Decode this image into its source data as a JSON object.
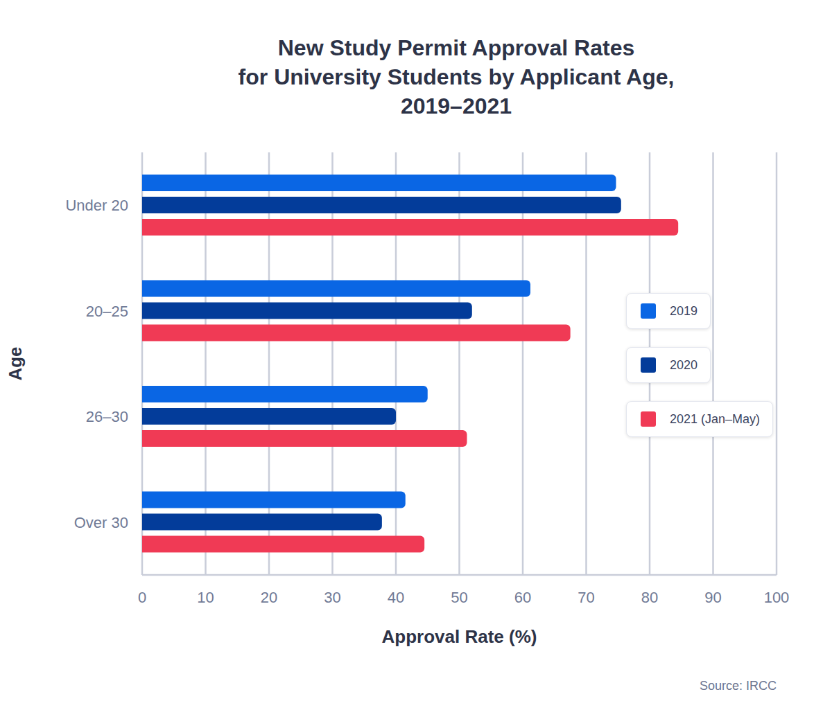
{
  "chart_data": {
    "type": "bar",
    "orientation": "horizontal",
    "title": "New Study Permit Approval Rates\nfor University Students by Applicant Age,\n2019–2021",
    "xlabel": "Approval Rate (%)",
    "ylabel": "Age",
    "source": "Source: IRCC",
    "categories": [
      "Under 20",
      "20–25",
      "26–30",
      "Over 30"
    ],
    "series": [
      {
        "name": "2019",
        "color": "#0a66e4",
        "values": [
          74.7,
          61.2,
          45,
          41.5
        ]
      },
      {
        "name": "2020",
        "color": "#033c9a",
        "values": [
          75.5,
          52,
          40,
          37.8
        ]
      },
      {
        "name": "2021 (Jan–May)",
        "color": "#f03a55",
        "values": [
          84.5,
          67.5,
          51.2,
          44.5
        ]
      }
    ],
    "xlim": [
      0,
      100
    ],
    "xticks": [
      0,
      10,
      20,
      30,
      40,
      50,
      60,
      70,
      80,
      90,
      100
    ],
    "grid": true,
    "legend": "right"
  }
}
